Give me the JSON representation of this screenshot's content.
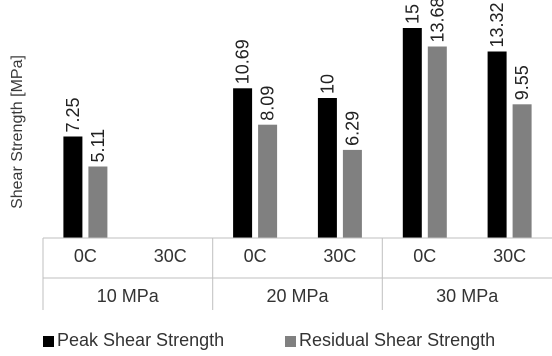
{
  "chart_data": {
    "type": "bar",
    "ylabel": "Shear Strength [MPa]",
    "ylim": [
      0,
      15
    ],
    "grid": false,
    "legend_position": "bottom",
    "groups": [
      {
        "label": "10 MPa",
        "categories": [
          "0C",
          "30C"
        ]
      },
      {
        "label": "20 MPa",
        "categories": [
          "0C",
          "30C"
        ]
      },
      {
        "label": "30 MPa",
        "categories": [
          "0C",
          "30C"
        ]
      }
    ],
    "categories": [
      "0C",
      "30C",
      "0C",
      "30C",
      "0C",
      "30C"
    ],
    "series": [
      {
        "name": "Peak Shear Strength",
        "color": "#000000",
        "values": [
          7.25,
          null,
          10.69,
          10,
          15,
          13.32
        ]
      },
      {
        "name": "Residual Shear Strength",
        "color": "#808080",
        "values": [
          5.11,
          null,
          8.09,
          6.29,
          13.68,
          9.55
        ]
      }
    ]
  }
}
